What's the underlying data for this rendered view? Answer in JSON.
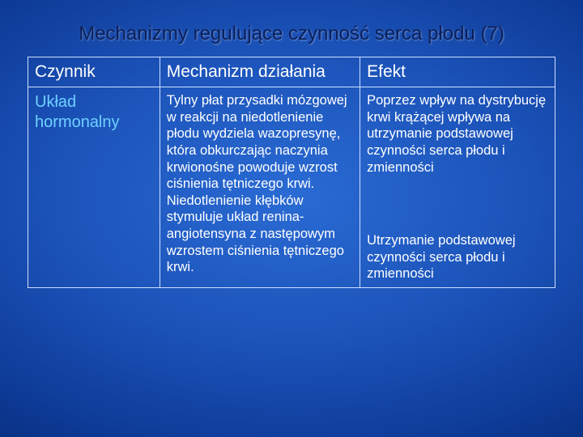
{
  "title": "Mechanizmy regulujące czynność serca płodu (7)",
  "table": {
    "columns": [
      "Czynnik",
      "Mechanizm działania",
      "Efekt"
    ],
    "row": {
      "factor": "Układ hormonalny",
      "mechanism_p1": "Tylny płat przysadki mózgowej w reakcji na niedotlenienie płodu wydziela wazopresynę, która obkurczając naczynia krwionośne powoduje wzrost ciśnienia tętniczego krwi.",
      "mechanism_p2": "Niedotlenienie kłębków stymuluje układ renina-angiotensyna z następowym wzrostem ciśnienia tętniczego krwi.",
      "effect_p1": "Poprzez wpływ na dystrybucję krwi krążącej wpływa na utrzymanie podstawowej czynności serca płodu i zmienności",
      "effect_p2": "Utrzymanie podstawowej czynności serca płodu i zmienności"
    }
  },
  "style": {
    "title_color": "#0a1f5a",
    "border_color": "#cfe0ff",
    "factor_color": "#6fd0ff",
    "bg_gradient_inner": "#2a6bd4",
    "bg_gradient_outer": "#031a4a",
    "header_fontsize": 21,
    "body_fontsize": 16.5,
    "title_fontsize": 24
  }
}
